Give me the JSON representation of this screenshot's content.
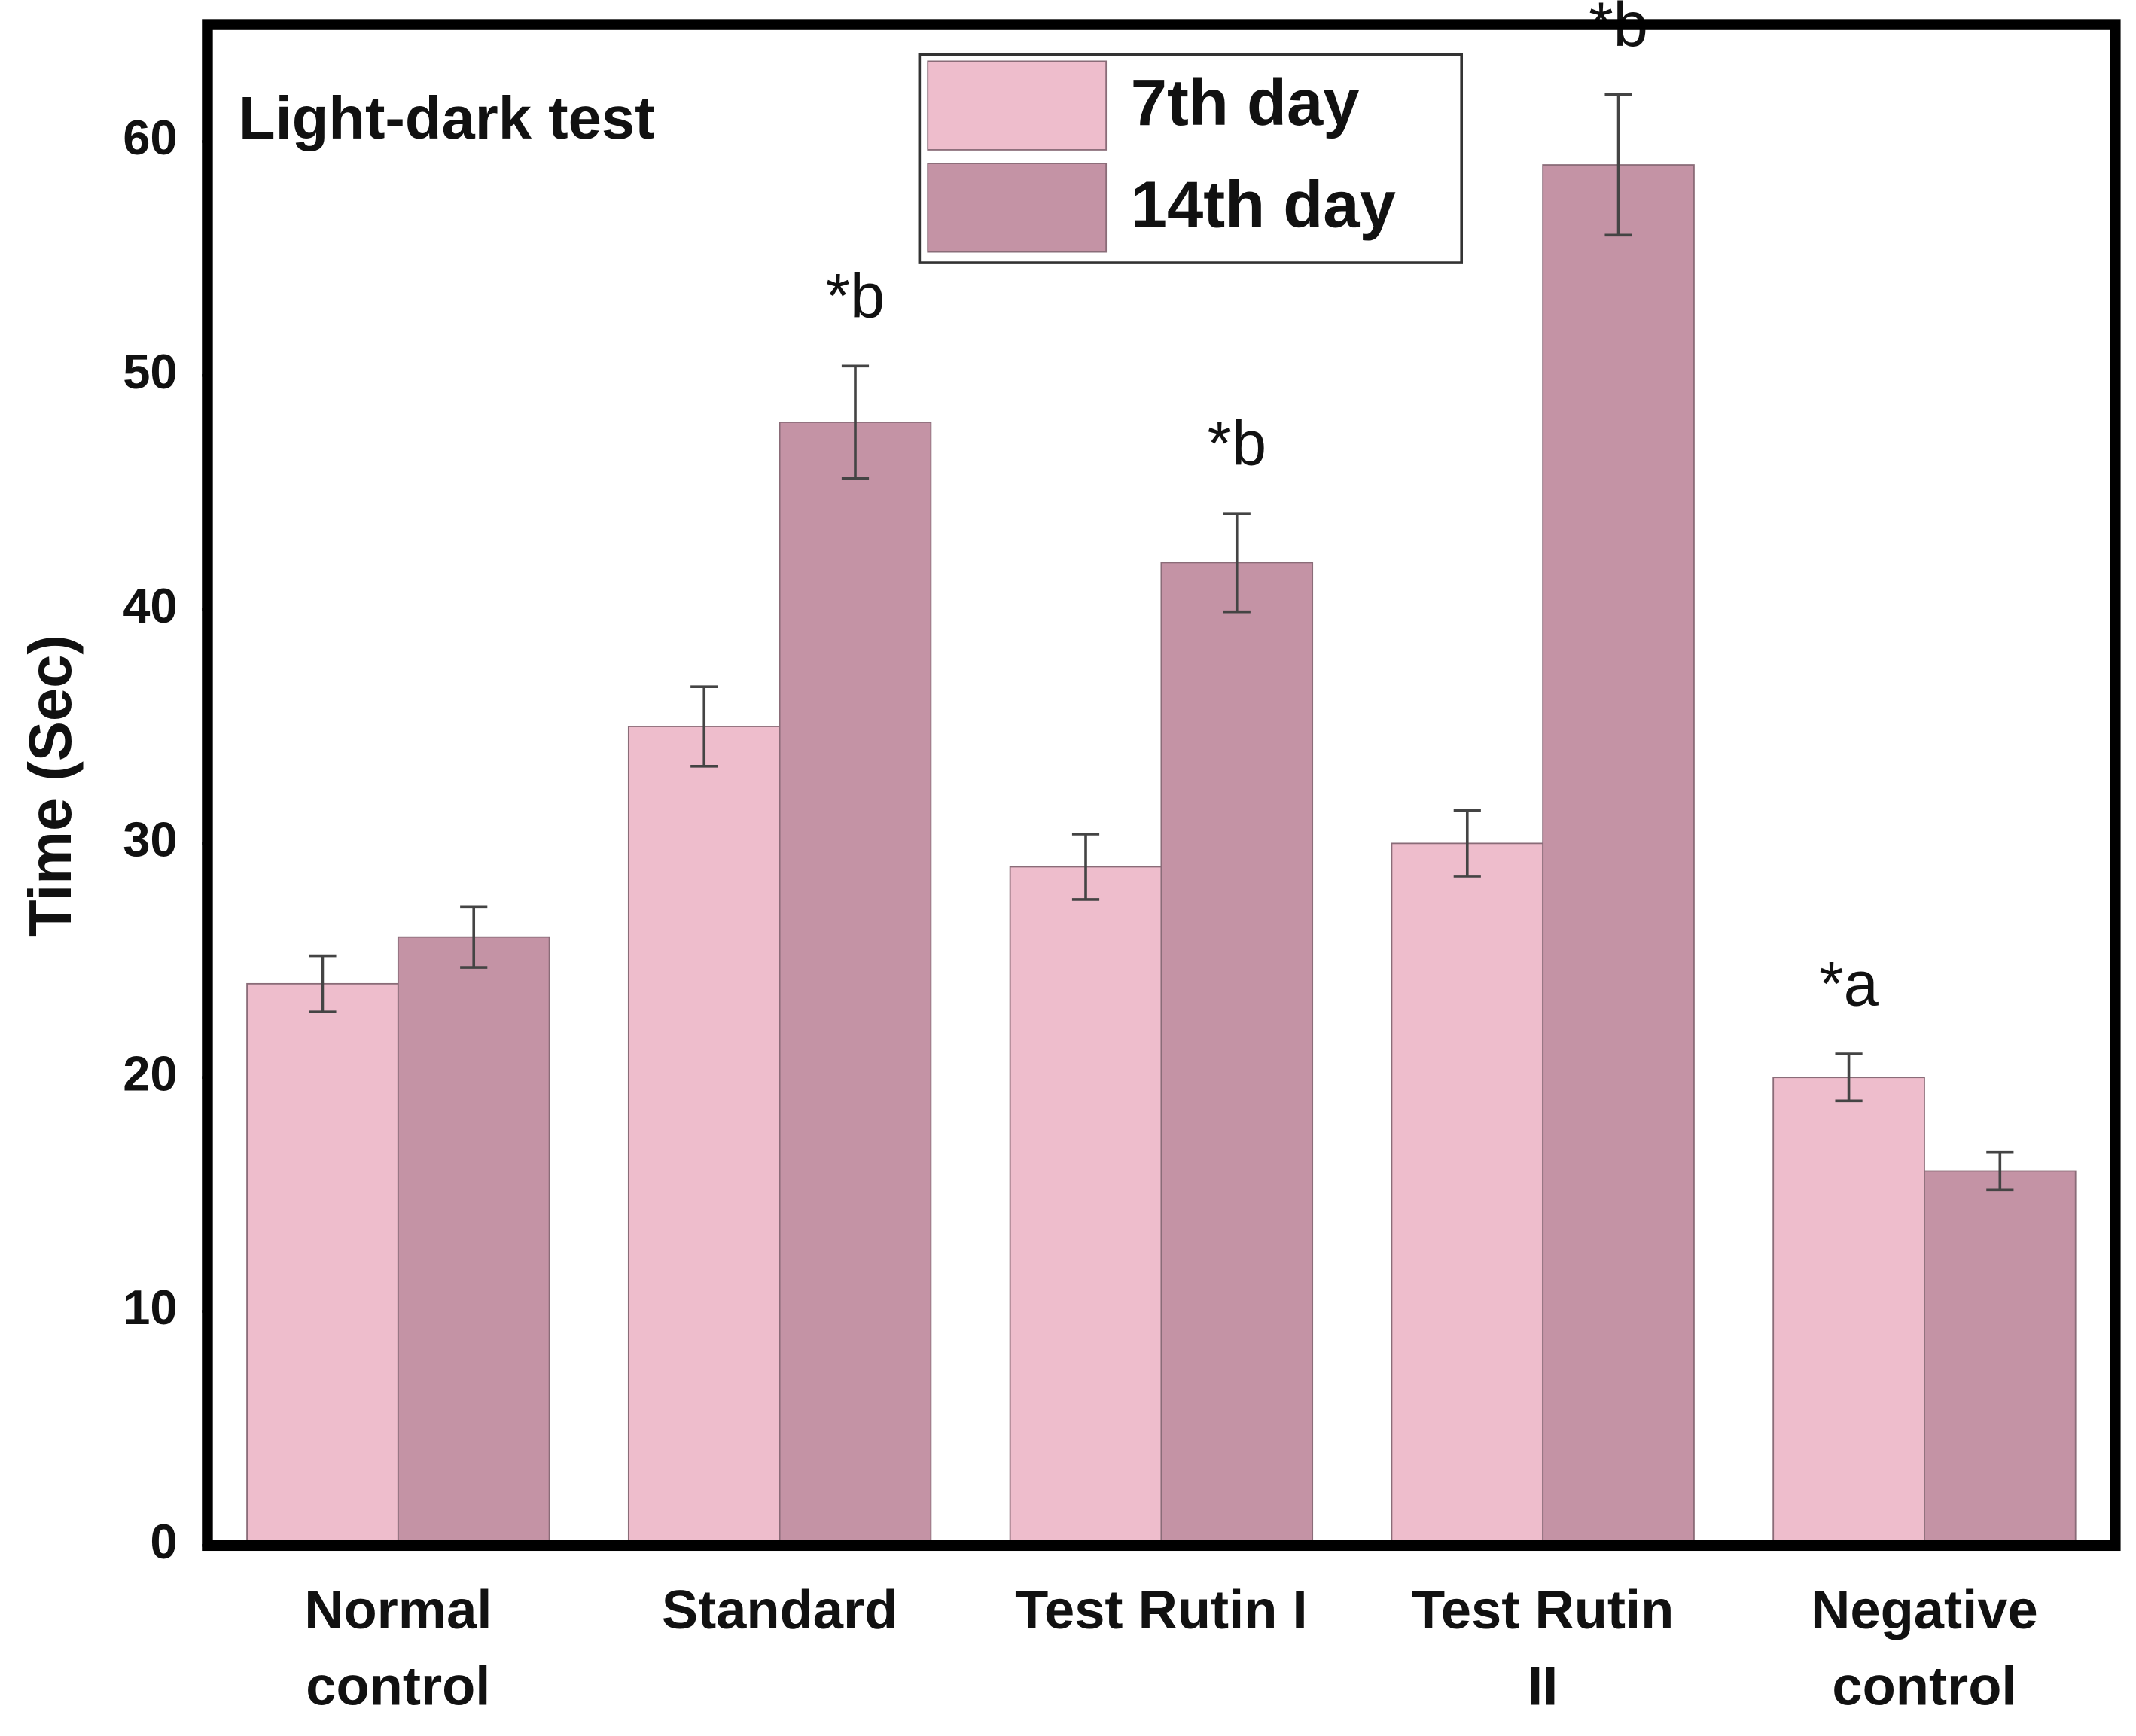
{
  "chart_data": {
    "type": "bar",
    "title": "Light-dark test",
    "y_label": "Time (Sec)",
    "categories": [
      "Normal\ncontrol",
      "Standard",
      "Test Rutin I",
      "Test Rutin\nII",
      "Negative\ncontrol"
    ],
    "series": [
      {
        "name": "7th day",
        "color": "#eebdcc",
        "values": [
          24,
          35,
          29,
          30,
          20
        ],
        "errors": [
          1.2,
          1.7,
          1.4,
          1.4,
          1.0
        ],
        "annotations": [
          null,
          null,
          null,
          null,
          "*a"
        ]
      },
      {
        "name": "14th day",
        "color": "#c493a5",
        "values": [
          26,
          48,
          42,
          59,
          16
        ],
        "errors": [
          1.3,
          2.4,
          2.1,
          3.0,
          0.8
        ],
        "annotations": [
          null,
          "*b",
          "*b",
          "*b",
          null
        ]
      }
    ],
    "ylim": [
      0,
      65
    ],
    "yticks": [
      0,
      10,
      20,
      30,
      40,
      50,
      60
    ],
    "grid": false,
    "legend": "top"
  }
}
